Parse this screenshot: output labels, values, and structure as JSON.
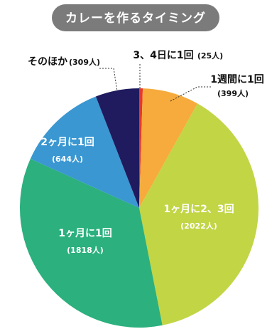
{
  "chart_data": {
    "type": "pie",
    "title": "カレーを作るタイミング",
    "categories": [
      "3、4日に1回",
      "1週間に1回",
      "1ヶ月に2、3回",
      "1ヶ月に1回",
      "2ヶ月に1回",
      "そのほか"
    ],
    "values": [
      25,
      399,
      2022,
      1818,
      644,
      309
    ],
    "value_labels": [
      "(25人)",
      "(399人)",
      "(2022人)",
      "(1818人)",
      "(644人)",
      "(309人)"
    ],
    "colors": [
      "#e83828",
      "#f6ab3c",
      "#c2d545",
      "#2bb07e",
      "#3a97d1",
      "#1f1b5e"
    ]
  }
}
